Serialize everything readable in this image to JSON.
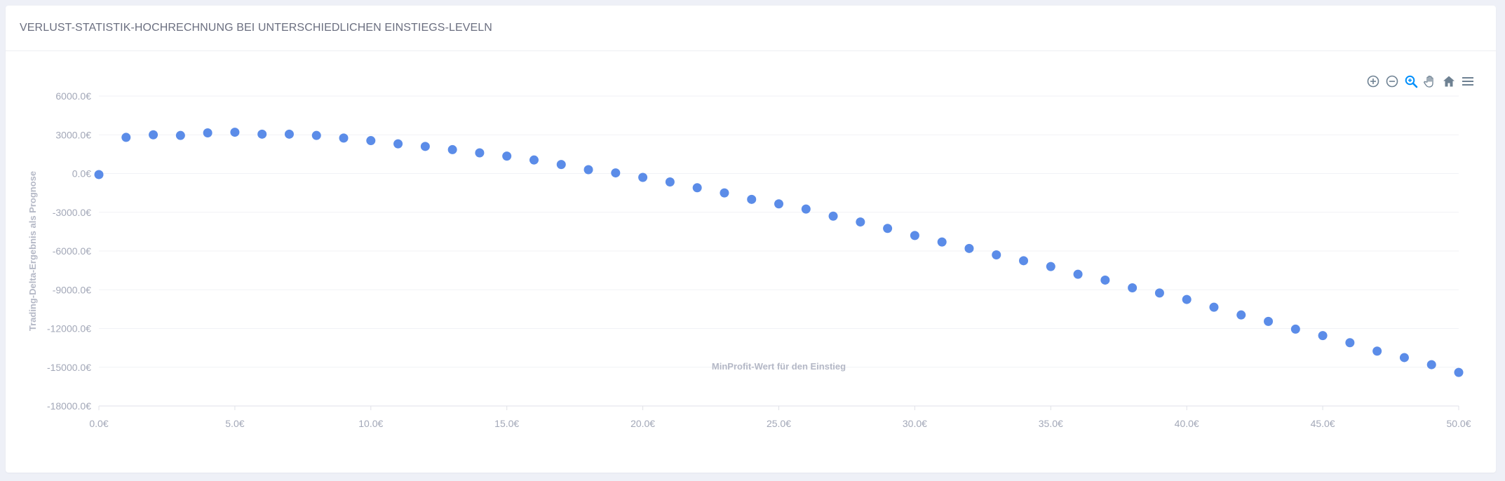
{
  "card": {
    "title": "VERLUST-STATISTIK-HOCHRECHNUNG BEI UNTERSCHIEDLICHEN EINSTIEGS-LEVELN"
  },
  "toolbar": {
    "icons": [
      "zoom-in-icon",
      "zoom-out-icon",
      "selection-zoom-icon",
      "pan-icon",
      "reset-zoom-icon",
      "menu-icon"
    ],
    "active_color": "#008ffb",
    "icon_color": "#6e8192"
  },
  "chart_data": {
    "type": "scatter",
    "xlabel": "MinProfit-Wert für den Einstieg",
    "ylabel": "Trading-Delta-Ergebnis als Prognose",
    "xlim": [
      0,
      50
    ],
    "ylim": [
      -18000,
      6000
    ],
    "x_ticks": [
      "0.0€",
      "5.0€",
      "10.0€",
      "15.0€",
      "20.0€",
      "25.0€",
      "30.0€",
      "35.0€",
      "40.0€",
      "45.0€",
      "50.0€"
    ],
    "y_ticks": [
      "6000.0€",
      "3000.0€",
      "0.0€",
      "-3000.0€",
      "-6000.0€",
      "-9000.0€",
      "-12000.0€",
      "-15000.0€",
      "-18000.0€"
    ],
    "marker_color": "#5b8ce8",
    "grid": true,
    "series": [
      {
        "x": [
          0,
          1,
          2,
          3,
          4,
          5,
          6,
          7,
          8,
          9,
          10,
          11,
          12,
          13,
          14,
          15,
          16,
          17,
          18,
          19,
          20,
          21,
          22,
          23,
          24,
          25,
          26,
          27,
          28,
          29,
          30,
          31,
          32,
          33,
          34,
          35,
          36,
          37,
          38,
          39,
          40,
          41,
          42,
          43,
          44,
          45,
          46,
          47,
          48,
          49,
          50
        ],
        "y": [
          -80,
          2800,
          3000,
          2950,
          3150,
          3200,
          3050,
          3050,
          2950,
          2750,
          2550,
          2300,
          2100,
          1850,
          1600,
          1350,
          1050,
          700,
          300,
          50,
          -300,
          -650,
          -1100,
          -1500,
          -2000,
          -2350,
          -2750,
          -3300,
          -3750,
          -4250,
          -4800,
          -5300,
          -5800,
          -6300,
          -6750,
          -7200,
          -7800,
          -8250,
          -8850,
          -9250,
          -9750,
          -10350,
          -10950,
          -11450,
          -12050,
          -12550,
          -13100,
          -13750,
          -14250,
          -14800,
          -15400
        ]
      }
    ]
  }
}
